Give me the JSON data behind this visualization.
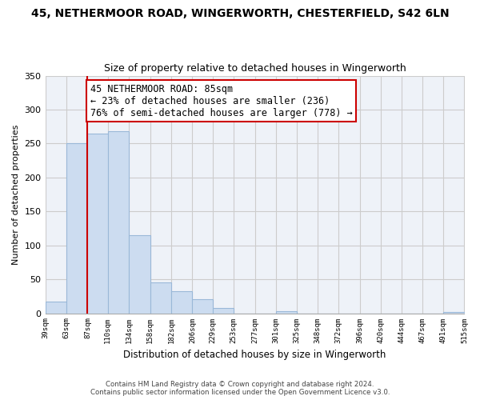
{
  "title_line1": "45, NETHERMOOR ROAD, WINGERWORTH, CHESTERFIELD, S42 6LN",
  "title_line2": "Size of property relative to detached houses in Wingerworth",
  "xlabel": "Distribution of detached houses by size in Wingerworth",
  "ylabel": "Number of detached properties",
  "bar_edges": [
    39,
    63,
    87,
    110,
    134,
    158,
    182,
    206,
    229,
    253,
    277,
    301,
    325,
    348,
    372,
    396,
    420,
    444,
    467,
    491,
    515
  ],
  "bar_heights": [
    17,
    250,
    265,
    268,
    115,
    45,
    33,
    21,
    8,
    0,
    0,
    3,
    0,
    0,
    0,
    0,
    0,
    0,
    0,
    2
  ],
  "bar_color": "#ccdcf0",
  "bar_edge_color": "#9ab8d8",
  "vline_x": 87,
  "vline_color": "#cc0000",
  "ylim": [
    0,
    350
  ],
  "annotation_line1": "45 NETHERMOOR ROAD: 85sqm",
  "annotation_line2": "← 23% of detached houses are smaller (236)",
  "annotation_line3": "76% of semi-detached houses are larger (778) →",
  "footer_line1": "Contains HM Land Registry data © Crown copyright and database right 2024.",
  "footer_line2": "Contains public sector information licensed under the Open Government Licence v3.0.",
  "tick_labels": [
    "39sqm",
    "63sqm",
    "87sqm",
    "110sqm",
    "134sqm",
    "158sqm",
    "182sqm",
    "206sqm",
    "229sqm",
    "253sqm",
    "277sqm",
    "301sqm",
    "325sqm",
    "348sqm",
    "372sqm",
    "396sqm",
    "420sqm",
    "444sqm",
    "467sqm",
    "491sqm",
    "515sqm"
  ],
  "background_color": "#ffffff",
  "grid_color": "#cccccc",
  "plot_bg_color": "#eef2f8"
}
